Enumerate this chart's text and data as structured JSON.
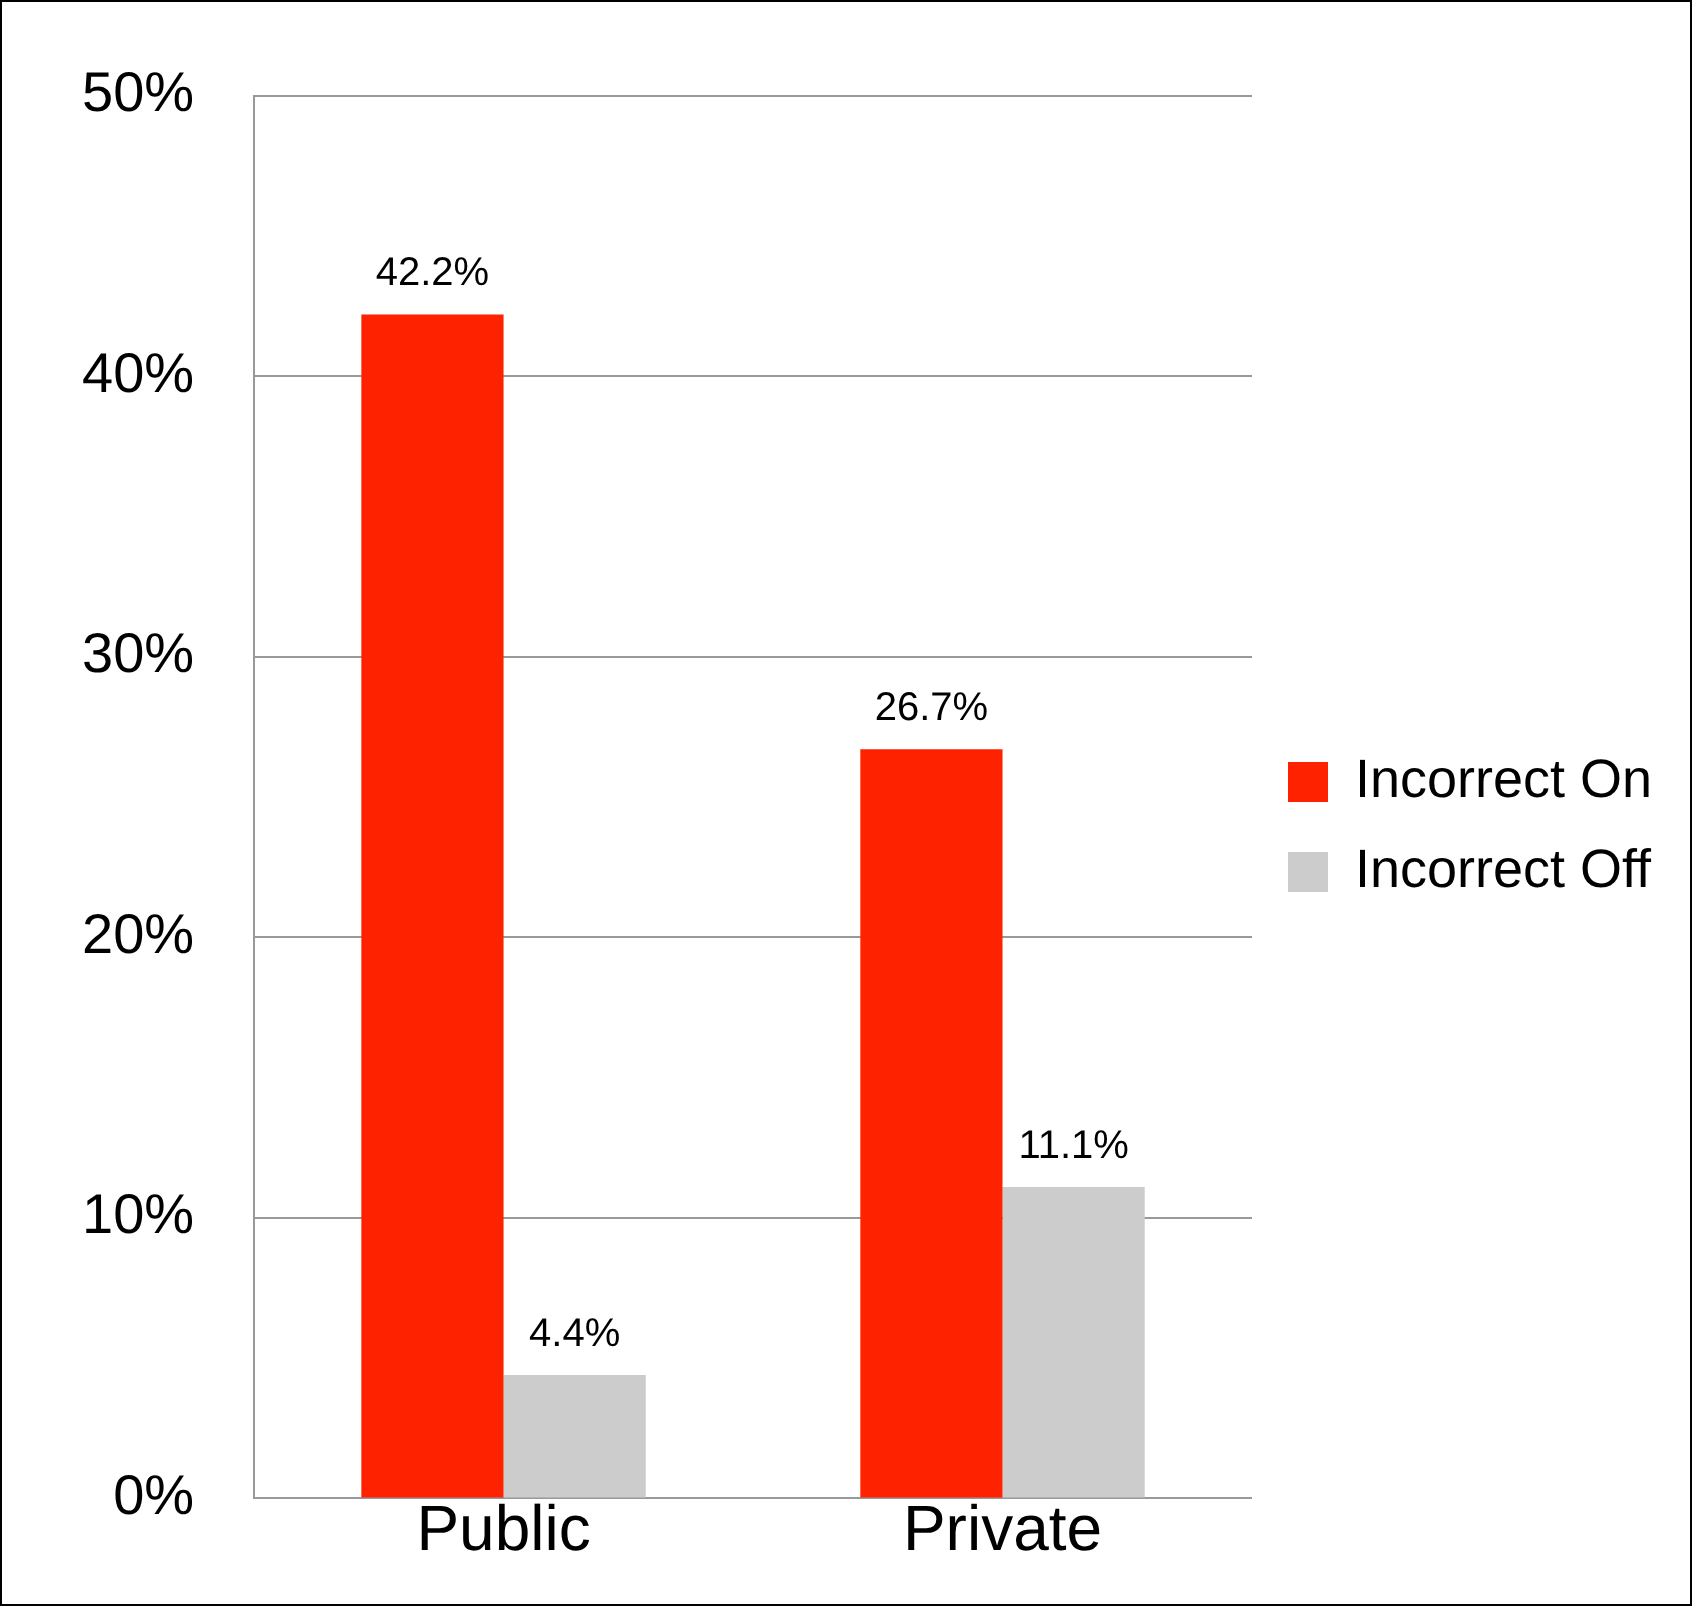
{
  "chart_data": {
    "type": "bar",
    "categories": [
      "Public",
      "Private"
    ],
    "series": [
      {
        "name": "Incorrect On",
        "color": "#ff2200",
        "values": [
          42.2,
          26.7
        ],
        "value_labels": [
          "42.2%",
          "26.7%"
        ]
      },
      {
        "name": "Incorrect Off",
        "color": "#cccccc",
        "values": [
          4.4,
          11.1
        ],
        "value_labels": [
          "4.4%",
          "11.1%"
        ]
      }
    ],
    "ylim": [
      0,
      50
    ],
    "yticks": [
      {
        "value": 0,
        "label": "0%"
      },
      {
        "value": 10,
        "label": "10%"
      },
      {
        "value": 20,
        "label": "20%"
      },
      {
        "value": 30,
        "label": "30%"
      },
      {
        "value": 40,
        "label": "40%"
      },
      {
        "value": 50,
        "label": "50%"
      }
    ],
    "grid": "y",
    "legend": "right"
  }
}
